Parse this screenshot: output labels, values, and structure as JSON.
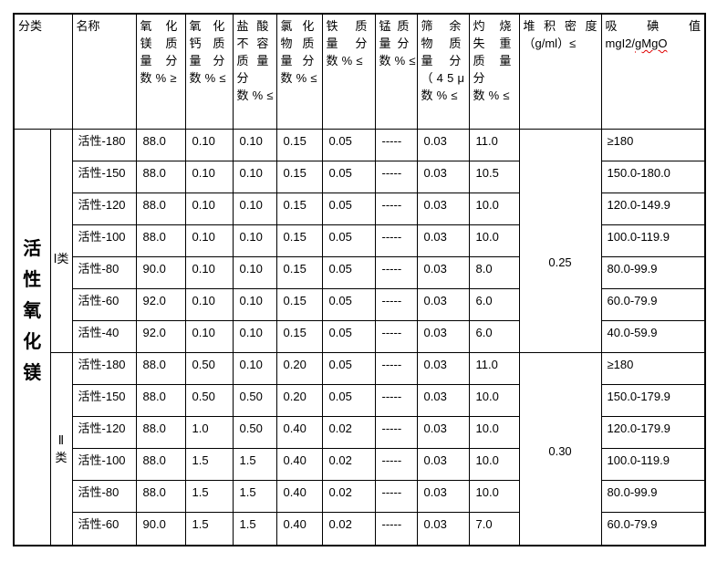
{
  "page": {
    "background": "#ffffff",
    "text_color": "#000000",
    "border_color": "#000000",
    "spellcheck_underline_color": "#e00000"
  },
  "table": {
    "headers": {
      "classification": "分类",
      "name": "名称",
      "specs": [
        "氧化镁质量分数%≥",
        "氧化钙质量分数%≤",
        "盐酸不容质量分数%≤",
        "氯化物质量分数%≤",
        "铁质量分数%≤",
        "锰质量分数%≤",
        "筛余物质量分（45μm）数%≤",
        "灼烧失重质量分数%≤"
      ],
      "bulk_density": {
        "title": "堆积密度",
        "unit": "（g/ml）≤"
      },
      "iodine": {
        "title": "吸碘值",
        "unit_prefix": "mgI2/",
        "unit_flagged": "gMgO"
      }
    },
    "category": "活性氧化镁",
    "groups": [
      {
        "class_label": "Ⅰ类",
        "bulk_density": "0.25",
        "rows": [
          {
            "name": "活性-180",
            "mgo": "88.0",
            "cao": "0.10",
            "hcl": "0.10",
            "chloride": "0.15",
            "fe": "0.05",
            "mn": "-----",
            "sieve": "0.03",
            "loi": "11.0",
            "iodine": "≥180"
          },
          {
            "name": "活性-150",
            "mgo": "88.0",
            "cao": "0.10",
            "hcl": "0.10",
            "chloride": "0.15",
            "fe": "0.05",
            "mn": "-----",
            "sieve": "0.03",
            "loi": "10.5",
            "iodine": "150.0-180.0"
          },
          {
            "name": "活性-120",
            "mgo": "88.0",
            "cao": "0.10",
            "hcl": "0.10",
            "chloride": "0.15",
            "fe": "0.05",
            "mn": "-----",
            "sieve": "0.03",
            "loi": "10.0",
            "iodine": "120.0-149.9"
          },
          {
            "name": "活性-100",
            "mgo": "88.0",
            "cao": "0.10",
            "hcl": "0.10",
            "chloride": "0.15",
            "fe": "0.05",
            "mn": "-----",
            "sieve": "0.03",
            "loi": "10.0",
            "iodine": "100.0-119.9"
          },
          {
            "name": "活性-80",
            "mgo": "90.0",
            "cao": "0.10",
            "hcl": "0.10",
            "chloride": "0.15",
            "fe": "0.05",
            "mn": "-----",
            "sieve": "0.03",
            "loi": "8.0",
            "iodine": "80.0-99.9"
          },
          {
            "name": "活性-60",
            "mgo": "92.0",
            "cao": "0.10",
            "hcl": "0.10",
            "chloride": "0.15",
            "fe": "0.05",
            "mn": "-----",
            "sieve": "0.03",
            "loi": "6.0",
            "iodine": "60.0-79.9"
          },
          {
            "name": "活性-40",
            "mgo": "92.0",
            "cao": "0.10",
            "hcl": "0.10",
            "chloride": "0.15",
            "fe": "0.05",
            "mn": "-----",
            "sieve": "0.03",
            "loi": "6.0",
            "iodine": "40.0-59.9"
          }
        ]
      },
      {
        "class_label": "Ⅱ类",
        "bulk_density": "0.30",
        "rows": [
          {
            "name": "活性-180",
            "mgo": "88.0",
            "cao": "0.50",
            "hcl": "0.10",
            "chloride": "0.20",
            "fe": "0.05",
            "mn": "-----",
            "sieve": "0.03",
            "loi": "11.0",
            "iodine": "≥180"
          },
          {
            "name": "活性-150",
            "mgo": "88.0",
            "cao": "0.50",
            "hcl": "0.50",
            "chloride": "0.20",
            "fe": "0.05",
            "mn": "-----",
            "sieve": "0.03",
            "loi": "10.0",
            "iodine": "150.0-179.9"
          },
          {
            "name": "活性-120",
            "mgo": "88.0",
            "cao": "1.0",
            "hcl": "0.50",
            "chloride": "0.40",
            "fe": "0.02",
            "mn": "-----",
            "sieve": "0.03",
            "loi": "10.0",
            "iodine": "120.0-179.9"
          },
          {
            "name": "活性-100",
            "mgo": "88.0",
            "cao": "1.5",
            "hcl": "1.5",
            "chloride": "0.40",
            "fe": "0.02",
            "mn": "-----",
            "sieve": "0.03",
            "loi": "10.0",
            "iodine": "100.0-119.9"
          },
          {
            "name": "活性-80",
            "mgo": "88.0",
            "cao": "1.5",
            "hcl": "1.5",
            "chloride": "0.40",
            "fe": "0.02",
            "mn": "-----",
            "sieve": "0.03",
            "loi": "10.0",
            "iodine": "80.0-99.9"
          },
          {
            "name": "活性-60",
            "mgo": "90.0",
            "cao": "1.5",
            "hcl": "1.5",
            "chloride": "0.40",
            "fe": "0.02",
            "mn": "-----",
            "sieve": "0.03",
            "loi": "7.0",
            "iodine": "60.0-79.9"
          }
        ]
      }
    ]
  }
}
